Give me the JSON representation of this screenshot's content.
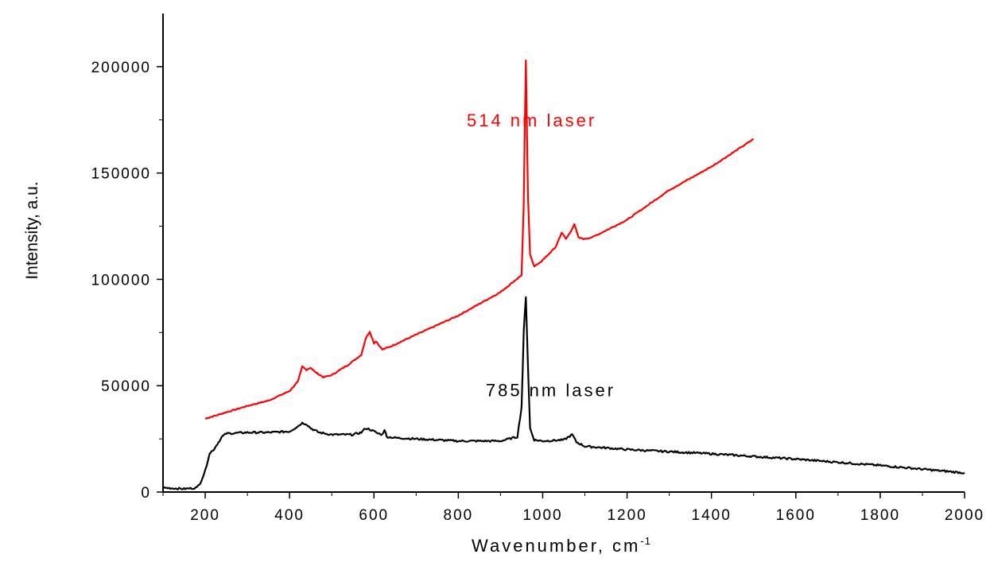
{
  "chart_data": {
    "type": "line",
    "title": "",
    "xlabel": "Wavenumber, cm",
    "xlabel_superscript": "-1",
    "ylabel": "Intensity, a.u.",
    "xlim": [
      100,
      2000
    ],
    "ylim": [
      0,
      225000
    ],
    "x_ticks": [
      200,
      400,
      600,
      800,
      1000,
      1200,
      1400,
      1600,
      1800,
      2000
    ],
    "x_tick_labels": [
      "200",
      "400",
      "600",
      "800",
      "1000",
      "1200",
      "1400",
      "1600",
      "1800",
      "2000"
    ],
    "y_ticks": [
      0,
      50000,
      100000,
      150000,
      200000
    ],
    "y_tick_labels": [
      "0",
      "50000",
      "100000",
      "150000",
      "200000"
    ],
    "grid": false,
    "legend": "none",
    "series": [
      {
        "name": "514 nm laser",
        "color": "#ff0000",
        "x": [
          200,
          250,
          300,
          350,
          400,
          420,
          430,
          440,
          450,
          460,
          480,
          500,
          540,
          570,
          580,
          590,
          600,
          605,
          610,
          620,
          640,
          700,
          800,
          900,
          950,
          955,
          960,
          965,
          970,
          980,
          1000,
          1030,
          1045,
          1055,
          1065,
          1075,
          1085,
          1100,
          1120,
          1130,
          1200,
          1300,
          1400,
          1500
        ],
        "y": [
          34500,
          37500,
          40500,
          43000,
          47500,
          52000,
          59000,
          57500,
          58500,
          56500,
          54000,
          55000,
          60000,
          64500,
          72000,
          75500,
          70000,
          71000,
          69500,
          67000,
          68500,
          74000,
          83000,
          94000,
          102000,
          135000,
          203000,
          140000,
          112000,
          106000,
          109000,
          115000,
          122000,
          119000,
          122000,
          126000,
          119500,
          119000,
          120000,
          121000,
          128000,
          142000,
          153000,
          166000
        ]
      },
      {
        "name": "785 nm laser",
        "color": "#000000",
        "x": [
          100,
          150,
          180,
          190,
          200,
          210,
          220,
          240,
          250,
          300,
          350,
          400,
          420,
          430,
          440,
          450,
          470,
          500,
          550,
          570,
          580,
          590,
          600,
          610,
          620,
          625,
          630,
          650,
          700,
          800,
          900,
          940,
          950,
          955,
          960,
          965,
          970,
          980,
          1000,
          1050,
          1070,
          1080,
          1100,
          1200,
          1400,
          1600,
          1800,
          2000
        ],
        "y": [
          2000,
          1500,
          2000,
          5000,
          10000,
          18000,
          20000,
          26000,
          27500,
          28000,
          28000,
          28500,
          31000,
          32500,
          32000,
          30000,
          28000,
          27000,
          27000,
          28000,
          30000,
          29500,
          28500,
          27500,
          27000,
          29500,
          26000,
          25500,
          25000,
          24000,
          24000,
          26000,
          40000,
          75000,
          92000,
          60000,
          30000,
          24500,
          24000,
          24500,
          27000,
          23500,
          21500,
          20000,
          18000,
          15500,
          12500,
          9000
        ]
      }
    ],
    "annotations": [
      {
        "text": "514 nm laser",
        "color": "#ff0000",
        "x": 820,
        "y": 172000
      },
      {
        "text": "785 nm laser",
        "color": "#000000",
        "x": 865,
        "y": 45000
      }
    ]
  }
}
